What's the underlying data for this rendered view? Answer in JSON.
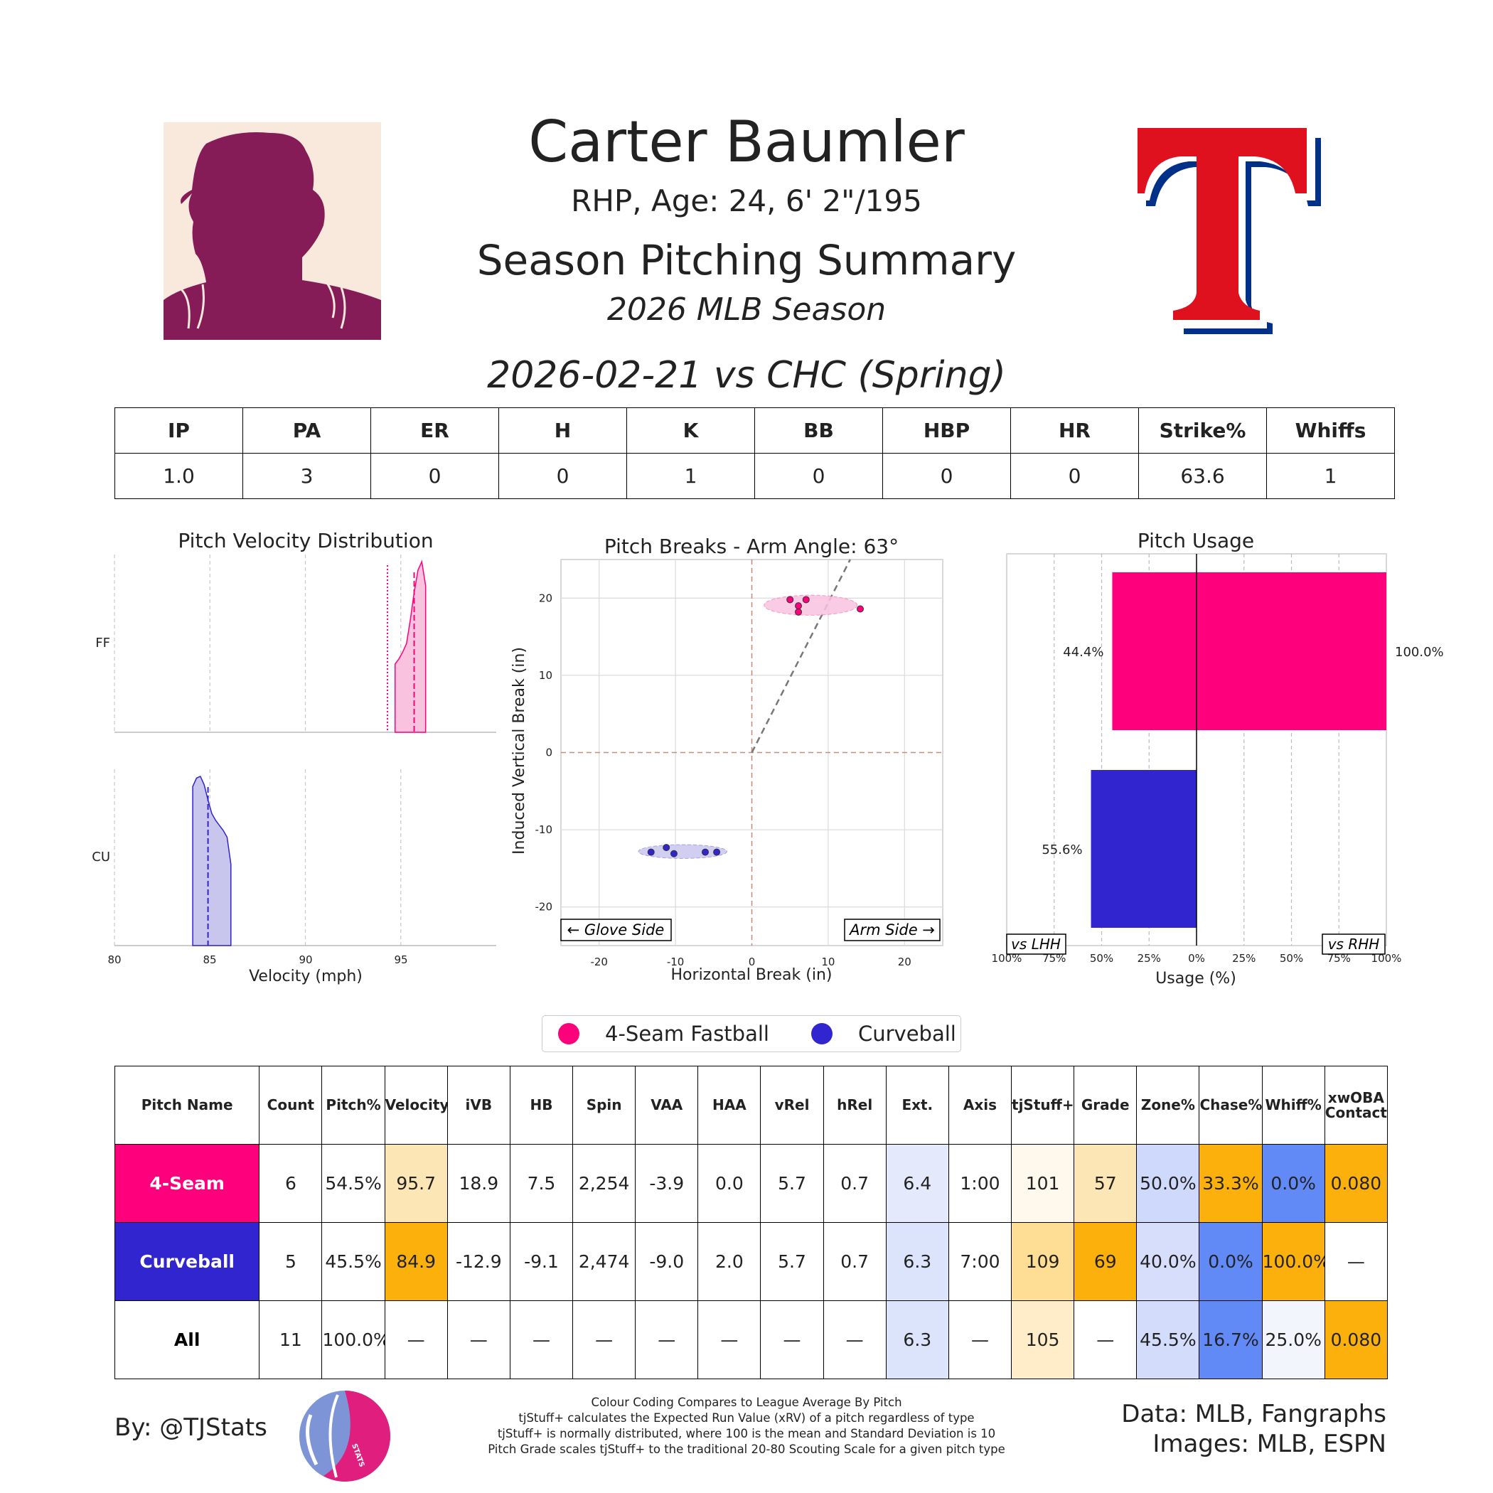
{
  "header": {
    "player_name": "Carter Baumler",
    "bio": "RHP, Age: 24, 6' 2\"/195",
    "summary_title": "Season Pitching Summary",
    "season_label": "2026 MLB Season",
    "game_label": "2026-02-21 vs CHC (Spring)"
  },
  "colors": {
    "ff": "#FF007D",
    "cu": "#3025CE",
    "ff_light": "#F9C2DF",
    "cu_light": "#C9C6EE",
    "texas_red": "#E0111F",
    "texas_blue": "#003087",
    "headshot_bg": "#F8E9DC",
    "headshot_fg": "#861C57"
  },
  "line_stats": {
    "headers": [
      "IP",
      "PA",
      "ER",
      "H",
      "K",
      "BB",
      "HBP",
      "HR",
      "Strike%",
      "Whiffs"
    ],
    "values": [
      "1.0",
      "3",
      "0",
      "0",
      "1",
      "0",
      "0",
      "0",
      "63.6",
      "1"
    ]
  },
  "chart_data": [
    {
      "type": "area",
      "title": "Pitch Velocity Distribution",
      "xlabel": "Velocity (mph)",
      "xlim": [
        80,
        100
      ],
      "xticks": [
        "80",
        "85",
        "90",
        "95"
      ],
      "grid": true,
      "series": [
        {
          "name": "FF",
          "mean": 95.7,
          "league_avg": 94.3,
          "density_x": [
            94.7,
            94.9,
            95.1,
            95.3,
            95.5,
            95.7,
            95.9,
            96.1,
            96.3
          ],
          "density_y": [
            0.4,
            0.43,
            0.47,
            0.52,
            0.66,
            0.82,
            0.95,
            1.0,
            0.86
          ]
        },
        {
          "name": "CU",
          "mean": 84.9,
          "density_x": [
            84.1,
            84.3,
            84.5,
            84.7,
            84.9,
            85.1,
            85.3,
            85.5,
            85.7,
            85.9,
            86.1
          ],
          "density_y": [
            0.94,
            0.99,
            1.0,
            0.95,
            0.86,
            0.78,
            0.74,
            0.71,
            0.68,
            0.64,
            0.48
          ]
        }
      ]
    },
    {
      "type": "scatter",
      "title": "Pitch Breaks - Arm Angle: 63°",
      "xlabel": "Horizontal Break (in)",
      "ylabel": "Induced Vertical Break (in)",
      "xlim": [
        -25,
        25
      ],
      "ylim": [
        -25,
        25
      ],
      "xticks": [
        "-20",
        "-10",
        "0",
        "10",
        "20"
      ],
      "yticks": [
        "20",
        "10",
        "0",
        "-10",
        "-20"
      ],
      "arm_angle_deg": 63,
      "annotations": [
        "← Glove Side",
        "Arm Side →"
      ],
      "series": [
        {
          "name": "FF",
          "x": [
            5.0,
            7.1,
            6.1,
            6.1,
            14.2
          ],
          "y": [
            19.8,
            19.8,
            19.0,
            18.2,
            18.6
          ]
        },
        {
          "name": "CU",
          "x": [
            -13.2,
            -11.2,
            -10.2,
            -6.1,
            -4.6
          ],
          "y": [
            -12.9,
            -12.3,
            -13.1,
            -12.9,
            -12.9
          ]
        }
      ]
    },
    {
      "type": "bar",
      "title": "Pitch Usage",
      "xlabel": "Usage (%)",
      "xlim": [
        -100,
        100
      ],
      "xticks": [
        "100%",
        "75%",
        "50%",
        "25%",
        "0%",
        "25%",
        "50%",
        "75%",
        "100%"
      ],
      "side_labels": [
        "vs LHH",
        "vs RHH"
      ],
      "categories": [
        "FF",
        "CU"
      ],
      "series": [
        {
          "name": "vs LHH",
          "values": [
            44.4,
            55.6
          ],
          "labels": [
            "44.4%",
            "55.6%"
          ]
        },
        {
          "name": "vs RHH",
          "values": [
            100.0,
            0.0
          ],
          "labels": [
            "100.0%",
            ""
          ]
        }
      ]
    }
  ],
  "legend": {
    "ff_label": "4-Seam Fastball",
    "cu_label": "Curveball"
  },
  "pitch_table": {
    "headers": [
      "Pitch Name",
      "Count",
      "Pitch%",
      "Velocity",
      "iVB",
      "HB",
      "Spin",
      "VAA",
      "HAA",
      "vRel",
      "hRel",
      "Ext.",
      "Axis",
      "tjStuff+",
      "Grade",
      "Zone%",
      "Chase%",
      "Whiff%",
      "xwOBA\nContact"
    ],
    "rows": [
      {
        "name": "4-Seam",
        "name_bg": "#FF007D",
        "cells": [
          "6",
          "54.5%",
          "95.7",
          "18.9",
          "7.5",
          "2,254",
          "-3.9",
          "0.0",
          "5.7",
          "0.7",
          "6.4",
          "1:00",
          "101",
          "57",
          "50.0%",
          "33.3%",
          "0.0%",
          "0.080"
        ],
        "bgs": [
          "#fff",
          "#fff",
          "#FDE6B5",
          "#fff",
          "#fff",
          "#fff",
          "#fff",
          "#fff",
          "#fff",
          "#fff",
          "#E4EAFB",
          "#fff",
          "#FEF9EC",
          "#FDE6B5",
          "#CFD9FB",
          "#FBB00B",
          "#628AF7",
          "#FBB00B"
        ]
      },
      {
        "name": "Curveball",
        "name_bg": "#3025CE",
        "cells": [
          "5",
          "45.5%",
          "84.9",
          "-12.9",
          "-9.1",
          "2,474",
          "-9.0",
          "2.0",
          "5.7",
          "0.7",
          "6.3",
          "7:00",
          "109",
          "69",
          "40.0%",
          "0.0%",
          "100.0%",
          "—"
        ],
        "bgs": [
          "#fff",
          "#fff",
          "#FBB00B",
          "#fff",
          "#fff",
          "#fff",
          "#fff",
          "#fff",
          "#fff",
          "#fff",
          "#DCE4FB",
          "#fff",
          "#FEDD95",
          "#FBB00B",
          "#D6DEFB",
          "#628AF7",
          "#FBB00B",
          "#fff"
        ]
      },
      {
        "name": "All",
        "name_bg": "#ffffff",
        "cells": [
          "11",
          "100.0%",
          "—",
          "—",
          "—",
          "—",
          "—",
          "—",
          "—",
          "—",
          "6.3",
          "—",
          "105",
          "—",
          "45.5%",
          "16.7%",
          "25.0%",
          "0.080"
        ],
        "bgs": [
          "#fff",
          "#fff",
          "#fff",
          "#fff",
          "#fff",
          "#fff",
          "#fff",
          "#fff",
          "#fff",
          "#fff",
          "#DCE4FB",
          "#fff",
          "#FEEDC8",
          "#fff",
          "#D3DCFB",
          "#628AF7",
          "#F2F5FC",
          "#FBB00B"
        ]
      }
    ]
  },
  "footer": {
    "by_line": "By: @TJStats",
    "logo_text": "STATS",
    "notes": [
      "Colour Coding Compares to League Average By Pitch",
      "tjStuff+ calculates the Expected Run Value (xRV) of a pitch regardless of type",
      "tjStuff+ is normally distributed, where 100 is the mean and Standard Deviation is 10",
      "Pitch Grade scales tjStuff+ to the traditional 20-80 Scouting Scale for a given pitch type"
    ],
    "data_credit": "Data: MLB, Fangraphs",
    "image_credit": "Images: MLB, ESPN"
  }
}
